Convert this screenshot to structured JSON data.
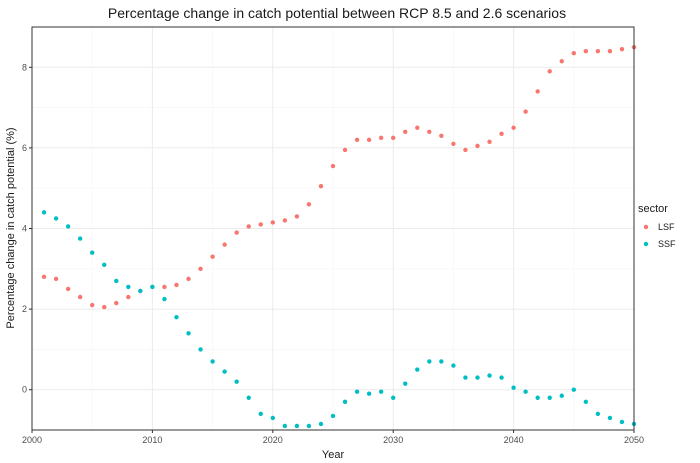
{
  "chart_data": {
    "type": "scatter",
    "title": "Percentage change in catch potential between RCP 8.5 and 2.6 scenarios",
    "xlabel": "Year",
    "ylabel": "Percentage change in catch potential (%)",
    "xlim": [
      2000,
      2050
    ],
    "ylim": [
      -1.0,
      9.0
    ],
    "x_ticks": [
      2000,
      2010,
      2020,
      2030,
      2040,
      2050
    ],
    "y_ticks": [
      0,
      2,
      4,
      6,
      8
    ],
    "grid": true,
    "legend": {
      "title": "sector",
      "position": "right"
    },
    "x": [
      2001,
      2002,
      2003,
      2004,
      2005,
      2006,
      2007,
      2008,
      2009,
      2010,
      2011,
      2012,
      2013,
      2014,
      2015,
      2016,
      2017,
      2018,
      2019,
      2020,
      2021,
      2022,
      2023,
      2024,
      2025,
      2026,
      2027,
      2028,
      2029,
      2030,
      2031,
      2032,
      2033,
      2034,
      2035,
      2036,
      2037,
      2038,
      2039,
      2040,
      2041,
      2042,
      2043,
      2044,
      2045,
      2046,
      2047,
      2048,
      2049,
      2050
    ],
    "series": [
      {
        "name": "LSF",
        "color": "#F8766D",
        "values": [
          2.8,
          2.75,
          2.5,
          2.3,
          2.1,
          2.05,
          2.15,
          2.3,
          2.45,
          2.55,
          2.55,
          2.6,
          2.75,
          3.0,
          3.3,
          3.6,
          3.9,
          4.05,
          4.1,
          4.15,
          4.2,
          4.3,
          4.6,
          5.05,
          5.55,
          5.95,
          6.2,
          6.2,
          6.25,
          6.25,
          6.4,
          6.5,
          6.4,
          6.3,
          6.1,
          5.95,
          6.05,
          6.15,
          6.35,
          6.5,
          6.9,
          7.4,
          7.9,
          8.15,
          8.35,
          8.4,
          8.4,
          8.4,
          8.45,
          8.5
        ]
      },
      {
        "name": "SSF",
        "color": "#00BFC4",
        "values": [
          4.4,
          4.25,
          4.05,
          3.75,
          3.4,
          3.1,
          2.7,
          2.55,
          2.45,
          2.55,
          2.25,
          1.8,
          1.4,
          1.0,
          0.7,
          0.45,
          0.2,
          -0.2,
          -0.6,
          -0.7,
          -0.9,
          -0.9,
          -0.9,
          -0.85,
          -0.65,
          -0.3,
          -0.05,
          -0.1,
          -0.05,
          -0.2,
          0.15,
          0.5,
          0.7,
          0.7,
          0.6,
          0.3,
          0.3,
          0.35,
          0.3,
          0.05,
          -0.05,
          -0.2,
          -0.2,
          -0.15,
          0.0,
          -0.3,
          -0.6,
          -0.7,
          -0.8,
          -0.85
        ]
      }
    ]
  }
}
